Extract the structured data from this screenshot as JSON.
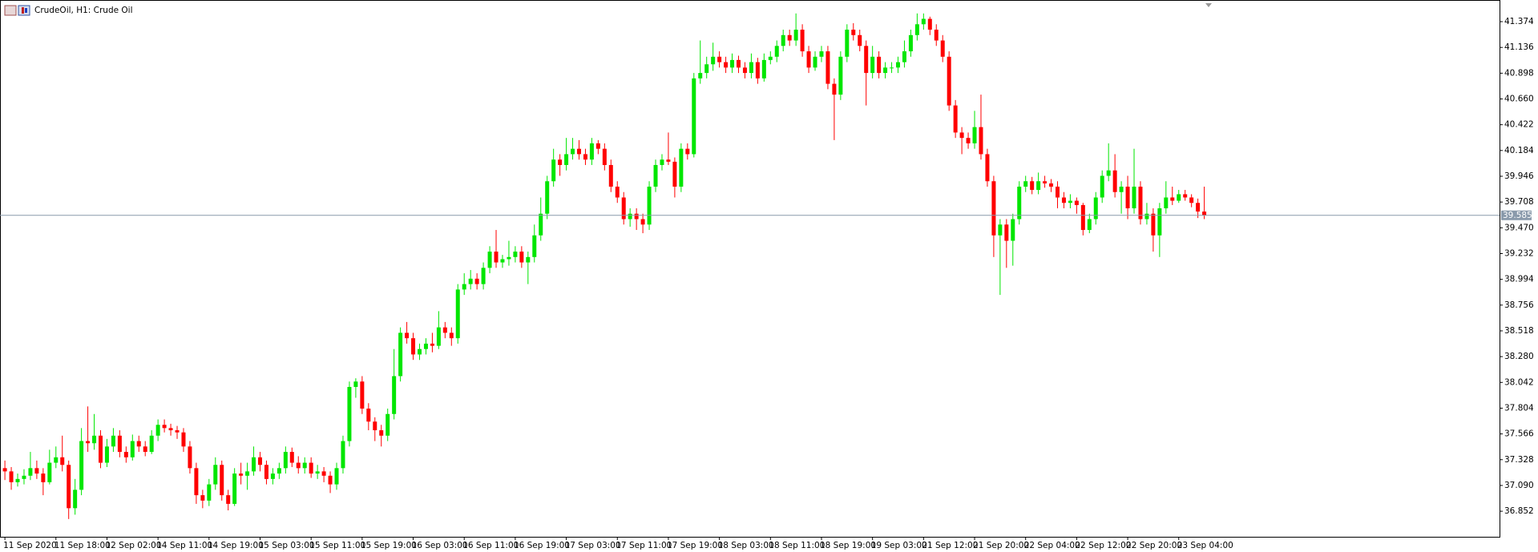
{
  "chart_data": {
    "type": "candlestick",
    "title": "CrudeOil, H1:  Crude Oil",
    "up_color": "#00e600",
    "down_color": "#ff0000",
    "ylim": [
      36.616,
      41.537
    ],
    "yticks": [
      41.374,
      41.136,
      40.898,
      {
        "value": 40.66,
        "label": "40.660"
      },
      40.422,
      40.184,
      39.946,
      39.708,
      {
        "value": 39.47,
        "label": "39.470"
      },
      39.232,
      38.994,
      38.756,
      38.518,
      {
        "value": 38.28,
        "label": "38.280"
      },
      38.042,
      37.804,
      37.566,
      37.328,
      {
        "value": 37.09,
        "label": "37.090"
      },
      36.852
    ],
    "last_price": 39.585,
    "categories": [
      "11 Sep 2020",
      null,
      null,
      null,
      null,
      null,
      null,
      null,
      "11 Sep 18:00",
      null,
      null,
      null,
      null,
      null,
      null,
      null,
      "12 Sep 02:00",
      null,
      null,
      null,
      null,
      null,
      null,
      null,
      "14 Sep 11:00",
      null,
      null,
      null,
      null,
      null,
      null,
      null,
      "14 Sep 19:00",
      null,
      null,
      null,
      null,
      null,
      null,
      null,
      "15 Sep 03:00",
      null,
      null,
      null,
      null,
      null,
      null,
      null,
      "15 Sep 11:00",
      null,
      null,
      null,
      null,
      null,
      null,
      null,
      "15 Sep 19:00",
      null,
      null,
      null,
      null,
      null,
      null,
      null,
      "16 Sep 03:00",
      null,
      null,
      null,
      null,
      null,
      null,
      null,
      "16 Sep 11:00",
      null,
      null,
      null,
      null,
      null,
      null,
      null,
      "16 Sep 19:00",
      null,
      null,
      null,
      null,
      null,
      null,
      null,
      "17 Sep 03:00",
      null,
      null,
      null,
      null,
      null,
      null,
      null,
      "17 Sep 11:00",
      null,
      null,
      null,
      null,
      null,
      null,
      null,
      "17 Sep 19:00",
      null,
      null,
      null,
      null,
      null,
      null,
      null,
      "18 Sep 03:00",
      null,
      null,
      null,
      null,
      null,
      null,
      null,
      "18 Sep 11:00",
      null,
      null,
      null,
      null,
      null,
      null,
      null,
      "18 Sep 19:00",
      null,
      null,
      null,
      null,
      null,
      null,
      null,
      "19 Sep 03:00",
      null,
      null,
      null,
      null,
      null,
      null,
      null,
      "21 Sep 12:00",
      null,
      null,
      null,
      null,
      null,
      null,
      null,
      "21 Sep 20:00",
      null,
      null,
      null,
      null,
      null,
      null,
      null,
      "22 Sep 04:00",
      null,
      null,
      null,
      null,
      null,
      null,
      null,
      "22 Sep 12:00",
      null,
      null,
      null,
      null,
      null,
      null,
      null,
      "22 Sep 20:00",
      null,
      null,
      null,
      null,
      null,
      null,
      null,
      "23 Sep 04:00",
      null,
      null,
      null,
      null
    ],
    "ohlc": [
      [
        37.25,
        37.32,
        37.14,
        37.22
      ],
      [
        37.22,
        37.26,
        37.05,
        37.12
      ],
      [
        37.12,
        37.2,
        37.08,
        37.15
      ],
      [
        37.15,
        37.24,
        37.1,
        37.18
      ],
      [
        37.18,
        37.4,
        37.14,
        37.25
      ],
      [
        37.25,
        37.32,
        37.15,
        37.2
      ],
      [
        37.2,
        37.25,
        37.0,
        37.12
      ],
      [
        37.12,
        37.42,
        37.1,
        37.3
      ],
      [
        37.3,
        37.45,
        37.25,
        37.35
      ],
      [
        37.35,
        37.55,
        37.22,
        37.28
      ],
      [
        37.28,
        37.32,
        36.78,
        36.88
      ],
      [
        36.88,
        37.15,
        36.82,
        37.05
      ],
      [
        37.05,
        37.62,
        37.0,
        37.5
      ],
      [
        37.5,
        37.82,
        37.4,
        37.48
      ],
      [
        37.48,
        37.75,
        37.42,
        37.55
      ],
      [
        37.55,
        37.6,
        37.25,
        37.3
      ],
      [
        37.3,
        37.52,
        37.26,
        37.45
      ],
      [
        37.45,
        37.62,
        37.4,
        37.55
      ],
      [
        37.55,
        37.6,
        37.35,
        37.4
      ],
      [
        37.4,
        37.45,
        37.3,
        37.35
      ],
      [
        37.35,
        37.56,
        37.32,
        37.5
      ],
      [
        37.5,
        37.55,
        37.4,
        37.45
      ],
      [
        37.45,
        37.5,
        37.36,
        37.4
      ],
      [
        37.4,
        37.6,
        37.38,
        37.55
      ],
      [
        37.55,
        37.7,
        37.5,
        37.65
      ],
      [
        37.65,
        37.7,
        37.58,
        37.62
      ],
      [
        37.62,
        37.66,
        37.55,
        37.6
      ],
      [
        37.6,
        37.64,
        37.52,
        37.58
      ],
      [
        37.58,
        37.62,
        37.4,
        37.45
      ],
      [
        37.45,
        37.5,
        37.2,
        37.25
      ],
      [
        37.25,
        37.3,
        36.92,
        37.0
      ],
      [
        37.0,
        37.05,
        36.88,
        36.95
      ],
      [
        36.95,
        37.15,
        36.9,
        37.1
      ],
      [
        37.1,
        37.35,
        37.05,
        37.28
      ],
      [
        37.28,
        37.32,
        36.95,
        37.0
      ],
      [
        37.0,
        37.05,
        36.86,
        36.92
      ],
      [
        36.92,
        37.25,
        36.9,
        37.2
      ],
      [
        37.2,
        37.3,
        37.1,
        37.18
      ],
      [
        37.18,
        37.3,
        37.05,
        37.22
      ],
      [
        37.22,
        37.45,
        37.18,
        37.35
      ],
      [
        37.35,
        37.4,
        37.22,
        37.28
      ],
      [
        37.28,
        37.32,
        37.1,
        37.15
      ],
      [
        37.15,
        37.25,
        37.1,
        37.2
      ],
      [
        37.2,
        37.3,
        37.15,
        37.25
      ],
      [
        37.25,
        37.45,
        37.2,
        37.4
      ],
      [
        37.4,
        37.44,
        37.26,
        37.3
      ],
      [
        37.3,
        37.36,
        37.2,
        37.25
      ],
      [
        37.25,
        37.35,
        37.2,
        37.3
      ],
      [
        37.3,
        37.35,
        37.16,
        37.2
      ],
      [
        37.2,
        37.28,
        37.15,
        37.22
      ],
      [
        37.22,
        37.26,
        37.12,
        37.18
      ],
      [
        37.18,
        37.22,
        37.02,
        37.1
      ],
      [
        37.1,
        37.3,
        37.05,
        37.25
      ],
      [
        37.25,
        37.55,
        37.2,
        37.5
      ],
      [
        37.5,
        38.05,
        37.45,
        38.0
      ],
      [
        38.0,
        38.08,
        37.9,
        38.05
      ],
      [
        38.05,
        38.1,
        37.75,
        37.8
      ],
      [
        37.8,
        37.85,
        37.6,
        37.68
      ],
      [
        37.68,
        37.72,
        37.5,
        37.6
      ],
      [
        37.6,
        37.65,
        37.45,
        37.55
      ],
      [
        37.55,
        37.8,
        37.5,
        37.75
      ],
      [
        37.75,
        38.35,
        37.7,
        38.1
      ],
      [
        38.1,
        38.55,
        38.05,
        38.5
      ],
      [
        38.5,
        38.6,
        38.4,
        38.45
      ],
      [
        38.45,
        38.5,
        38.25,
        38.3
      ],
      [
        38.3,
        38.4,
        38.25,
        38.35
      ],
      [
        38.35,
        38.45,
        38.3,
        38.4
      ],
      [
        38.4,
        38.5,
        38.32,
        38.38
      ],
      [
        38.38,
        38.7,
        38.35,
        38.55
      ],
      [
        38.55,
        38.6,
        38.45,
        38.5
      ],
      [
        38.5,
        38.55,
        38.38,
        38.45
      ],
      [
        38.45,
        38.95,
        38.4,
        38.9
      ],
      [
        38.9,
        39.05,
        38.85,
        38.95
      ],
      [
        38.95,
        39.08,
        38.9,
        39.0
      ],
      [
        39.0,
        39.05,
        38.9,
        38.95
      ],
      [
        38.95,
        39.15,
        38.9,
        39.1
      ],
      [
        39.1,
        39.3,
        39.05,
        39.25
      ],
      [
        39.25,
        39.45,
        39.1,
        39.15
      ],
      [
        39.15,
        39.22,
        39.1,
        39.18
      ],
      [
        39.18,
        39.35,
        39.12,
        39.2
      ],
      [
        39.2,
        39.3,
        39.15,
        39.25
      ],
      [
        39.25,
        39.3,
        39.1,
        39.15
      ],
      [
        39.15,
        39.25,
        38.95,
        39.2
      ],
      [
        39.2,
        39.5,
        39.15,
        39.4
      ],
      [
        39.4,
        39.75,
        39.35,
        39.6
      ],
      [
        39.6,
        39.95,
        39.55,
        39.9
      ],
      [
        39.9,
        40.2,
        39.85,
        40.1
      ],
      [
        40.1,
        40.15,
        39.95,
        40.05
      ],
      [
        40.05,
        40.3,
        40.0,
        40.15
      ],
      [
        40.15,
        40.3,
        40.1,
        40.2
      ],
      [
        40.2,
        40.28,
        40.1,
        40.15
      ],
      [
        40.15,
        40.2,
        40.05,
        40.1
      ],
      [
        40.1,
        40.3,
        40.05,
        40.25
      ],
      [
        40.25,
        40.28,
        40.15,
        40.2
      ],
      [
        40.2,
        40.25,
        40.0,
        40.05
      ],
      [
        40.05,
        40.1,
        39.8,
        39.85
      ],
      [
        39.85,
        39.9,
        39.7,
        39.75
      ],
      [
        39.75,
        39.8,
        39.5,
        39.55
      ],
      [
        39.55,
        39.65,
        39.48,
        39.6
      ],
      [
        39.6,
        39.65,
        39.45,
        39.55
      ],
      [
        39.55,
        39.6,
        39.42,
        39.5
      ],
      [
        39.5,
        39.9,
        39.45,
        39.85
      ],
      [
        39.85,
        40.1,
        39.8,
        40.05
      ],
      [
        40.05,
        40.15,
        40.0,
        40.1
      ],
      [
        40.1,
        40.35,
        40.05,
        40.08
      ],
      [
        40.08,
        40.12,
        39.75,
        39.85
      ],
      [
        39.85,
        40.25,
        39.8,
        40.2
      ],
      [
        40.2,
        40.25,
        40.1,
        40.15
      ],
      [
        40.15,
        40.9,
        40.12,
        40.85
      ],
      [
        40.85,
        41.2,
        40.8,
        40.9
      ],
      [
        40.9,
        41.05,
        40.85,
        40.98
      ],
      [
        40.98,
        41.18,
        40.92,
        41.05
      ],
      [
        41.05,
        41.1,
        40.95,
        41.0
      ],
      [
        41.0,
        41.05,
        40.9,
        40.95
      ],
      [
        40.95,
        41.08,
        40.9,
        41.02
      ],
      [
        41.02,
        41.06,
        40.9,
        40.95
      ],
      [
        40.95,
        41.0,
        40.85,
        40.9
      ],
      [
        40.9,
        41.08,
        40.85,
        41.0
      ],
      [
        41.0,
        41.04,
        40.8,
        40.85
      ],
      [
        40.85,
        41.08,
        40.82,
        41.02
      ],
      [
        41.02,
        41.1,
        40.98,
        41.05
      ],
      [
        41.05,
        41.2,
        41.0,
        41.15
      ],
      [
        41.15,
        41.3,
        41.1,
        41.25
      ],
      [
        41.25,
        41.3,
        41.15,
        41.2
      ],
      [
        41.2,
        41.45,
        41.15,
        41.3
      ],
      [
        41.3,
        41.35,
        41.05,
        41.1
      ],
      [
        41.1,
        41.15,
        40.9,
        40.95
      ],
      [
        40.95,
        41.1,
        40.92,
        41.05
      ],
      [
        41.05,
        41.15,
        41.0,
        41.1
      ],
      [
        41.1,
        41.15,
        40.75,
        40.8
      ],
      [
        40.8,
        40.85,
        40.28,
        40.7
      ],
      [
        40.7,
        41.1,
        40.65,
        41.05
      ],
      [
        41.05,
        41.35,
        41.0,
        41.3
      ],
      [
        41.3,
        41.36,
        41.2,
        41.25
      ],
      [
        41.25,
        41.3,
        41.1,
        41.15
      ],
      [
        41.15,
        41.2,
        40.6,
        40.9
      ],
      [
        40.9,
        41.15,
        40.85,
        41.05
      ],
      [
        41.05,
        41.1,
        40.85,
        40.9
      ],
      [
        40.9,
        41.0,
        40.85,
        40.95
      ],
      [
        40.95,
        41.0,
        40.9,
        40.95
      ],
      [
        40.95,
        41.05,
        40.9,
        41.0
      ],
      [
        41.0,
        41.2,
        40.95,
        41.1
      ],
      [
        41.1,
        41.3,
        41.05,
        41.25
      ],
      [
        41.25,
        41.45,
        41.2,
        41.35
      ],
      [
        41.35,
        41.45,
        41.3,
        41.4
      ],
      [
        41.4,
        41.42,
        41.25,
        41.3
      ],
      [
        41.3,
        41.35,
        41.15,
        41.2
      ],
      [
        41.2,
        41.25,
        41.0,
        41.05
      ],
      [
        41.05,
        41.1,
        40.55,
        40.6
      ],
      [
        40.6,
        40.65,
        40.3,
        40.35
      ],
      [
        40.35,
        40.4,
        40.15,
        40.3
      ],
      [
        40.3,
        40.35,
        40.2,
        40.25
      ],
      [
        40.25,
        40.55,
        40.2,
        40.4
      ],
      [
        40.4,
        40.7,
        40.1,
        40.15
      ],
      [
        40.15,
        40.2,
        39.85,
        39.9
      ],
      [
        39.9,
        39.95,
        39.2,
        39.4
      ],
      [
        39.4,
        39.55,
        38.85,
        39.5
      ],
      [
        39.5,
        39.55,
        39.1,
        39.35
      ],
      [
        39.35,
        39.6,
        39.12,
        39.55
      ],
      [
        39.55,
        39.9,
        39.5,
        39.85
      ],
      [
        39.85,
        39.95,
        39.8,
        39.9
      ],
      [
        39.9,
        39.94,
        39.78,
        39.82
      ],
      [
        39.82,
        39.98,
        39.78,
        39.9
      ],
      [
        39.9,
        39.95,
        39.84,
        39.88
      ],
      [
        39.88,
        39.92,
        39.8,
        39.85
      ],
      [
        39.85,
        39.9,
        39.65,
        39.75
      ],
      [
        39.75,
        39.8,
        39.65,
        39.7
      ],
      [
        39.7,
        39.78,
        39.65,
        39.72
      ],
      [
        39.72,
        39.75,
        39.6,
        39.68
      ],
      [
        39.68,
        39.7,
        39.4,
        39.45
      ],
      [
        39.45,
        39.6,
        39.42,
        39.55
      ],
      [
        39.55,
        39.8,
        39.5,
        39.75
      ],
      [
        39.75,
        40.0,
        39.7,
        39.95
      ],
      [
        39.95,
        40.25,
        39.9,
        40.0
      ],
      [
        40.0,
        40.15,
        39.75,
        39.8
      ],
      [
        39.8,
        39.9,
        39.6,
        39.85
      ],
      [
        39.85,
        39.95,
        39.55,
        39.65
      ],
      [
        39.65,
        40.2,
        39.6,
        39.85
      ],
      [
        39.85,
        39.9,
        39.5,
        39.55
      ],
      [
        39.55,
        39.7,
        39.5,
        39.6
      ],
      [
        39.6,
        39.65,
        39.25,
        39.4
      ],
      [
        39.4,
        39.7,
        39.2,
        39.65
      ],
      [
        39.65,
        39.9,
        39.6,
        39.75
      ],
      [
        39.75,
        39.85,
        39.68,
        39.72
      ],
      [
        39.72,
        39.82,
        39.7,
        39.78
      ],
      [
        39.78,
        39.82,
        39.72,
        39.75
      ],
      [
        39.75,
        39.78,
        39.66,
        39.7
      ],
      [
        39.7,
        39.74,
        39.56,
        39.62
      ],
      [
        39.62,
        39.85,
        39.55,
        39.585
      ]
    ]
  }
}
